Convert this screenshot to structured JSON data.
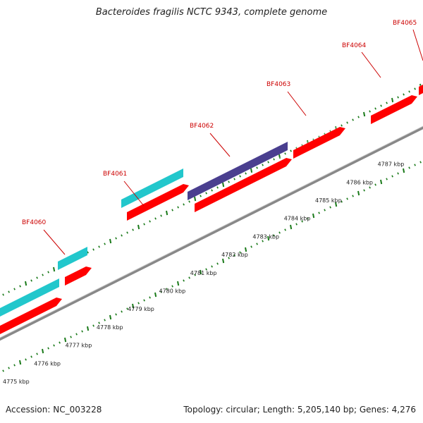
{
  "title": "Bacteroides fragilis NCTC 9343, complete genome",
  "footer": {
    "accession": "Accession: NC_003228",
    "summary": "Topology: circular; Length: 5,205,140 bp; Genes: 4,276"
  },
  "colors": {
    "forward_gene": "#ff0000",
    "cds_cyan": "#22c7cc",
    "cds_purple": "#4a3f8f",
    "backbone": "#888888",
    "ticks": "#1a7a1a",
    "gene_label": "#cc0000"
  },
  "genes": [
    {
      "name": "BF4060"
    },
    {
      "name": "BF4061"
    },
    {
      "name": "BF4062"
    },
    {
      "name": "BF4063"
    },
    {
      "name": "BF4064"
    },
    {
      "name": "BF4065"
    }
  ],
  "scale": [
    {
      "label": "4775 kbp"
    },
    {
      "label": "4776 kbp"
    },
    {
      "label": "4777 kbp"
    },
    {
      "label": "4778 kbp"
    },
    {
      "label": "4779 kbp"
    },
    {
      "label": "4780 kbp"
    },
    {
      "label": "4781 kbp"
    },
    {
      "label": "4782 kbp"
    },
    {
      "label": "4783 kbp"
    },
    {
      "label": "4784 kbp"
    },
    {
      "label": "4785 kbp"
    },
    {
      "label": "4786 kbp"
    },
    {
      "label": "4787 kbp"
    }
  ]
}
